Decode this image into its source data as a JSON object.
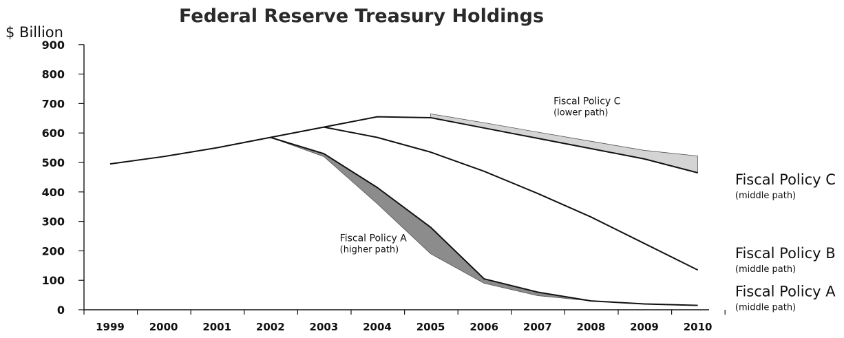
{
  "chart_data": {
    "type": "line",
    "title": "Federal Reserve Treasury Holdings",
    "ylabel": "$ Billion",
    "xlabel": "",
    "ylim": [
      0,
      900
    ],
    "yticks": [
      0,
      100,
      200,
      300,
      400,
      500,
      600,
      700,
      800,
      900
    ],
    "x": [
      1999,
      2000,
      2001,
      2002,
      2003,
      2004,
      2005,
      2006,
      2007,
      2008,
      2009,
      2010
    ],
    "x_labels": [
      "1999",
      "2000",
      "2001",
      "2002",
      "2003",
      "2004",
      "2005",
      "2006",
      "2007",
      "2008",
      "2009",
      "2010"
    ],
    "grid": false,
    "lines": [
      {
        "id": "common",
        "x": [
          1999,
          2000,
          2001,
          2002,
          2003,
          2004,
          2005
        ],
        "y": [
          495,
          520,
          550,
          585,
          620,
          655,
          652
        ]
      },
      {
        "id": "c-middle",
        "x": [
          2005,
          2006,
          2007,
          2008,
          2009,
          2010
        ],
        "y": [
          652,
          617,
          582,
          547,
          512,
          465
        ]
      },
      {
        "id": "b-middle",
        "x": [
          2003,
          2004,
          2005,
          2006,
          2007,
          2008,
          2009,
          2010
        ],
        "y": [
          620,
          585,
          535,
          470,
          395,
          315,
          225,
          135
        ]
      },
      {
        "id": "a-middle",
        "x": [
          2002,
          2003,
          2004,
          2005,
          2006,
          2007,
          2008,
          2009,
          2010
        ],
        "y": [
          585,
          530,
          415,
          280,
          105,
          60,
          30,
          20,
          15
        ]
      }
    ],
    "bands": [
      {
        "id": "c-lower",
        "x": [
          2005,
          2006,
          2007,
          2008,
          2009,
          2010
        ],
        "upper": [
          665,
          635,
          603,
          572,
          541,
          522
        ],
        "lower": [
          652,
          617,
          582,
          547,
          512,
          465
        ],
        "color": "#d4d4d4"
      },
      {
        "id": "a-higher",
        "x": [
          2002,
          2003,
          2004,
          2005,
          2006,
          2007,
          2008
        ],
        "upper": [
          585,
          530,
          415,
          280,
          105,
          60,
          30
        ],
        "lower": [
          585,
          520,
          360,
          190,
          90,
          48,
          30
        ],
        "color": "#8c8c8c"
      }
    ],
    "annotations": [
      {
        "id": "fp-c-lower",
        "title": "Fiscal Policy C",
        "sub": "(lower path)",
        "x": 2007.3,
        "y": 697
      },
      {
        "id": "fp-c-middle",
        "title": "Fiscal Policy C",
        "sub": "(middle path)",
        "x": 2010.7,
        "y": 425
      },
      {
        "id": "fp-b-middle",
        "title": "Fiscal Policy B",
        "sub": "(middle path)",
        "x": 2010.7,
        "y": 175
      },
      {
        "id": "fp-a-middle",
        "title": "Fiscal Policy A",
        "sub": "(middle path)",
        "x": 2010.7,
        "y": 45
      },
      {
        "id": "fp-a-higher",
        "title": "Fiscal Policy A",
        "sub": "(higher path)",
        "x": 2003.3,
        "y": 233
      }
    ]
  }
}
